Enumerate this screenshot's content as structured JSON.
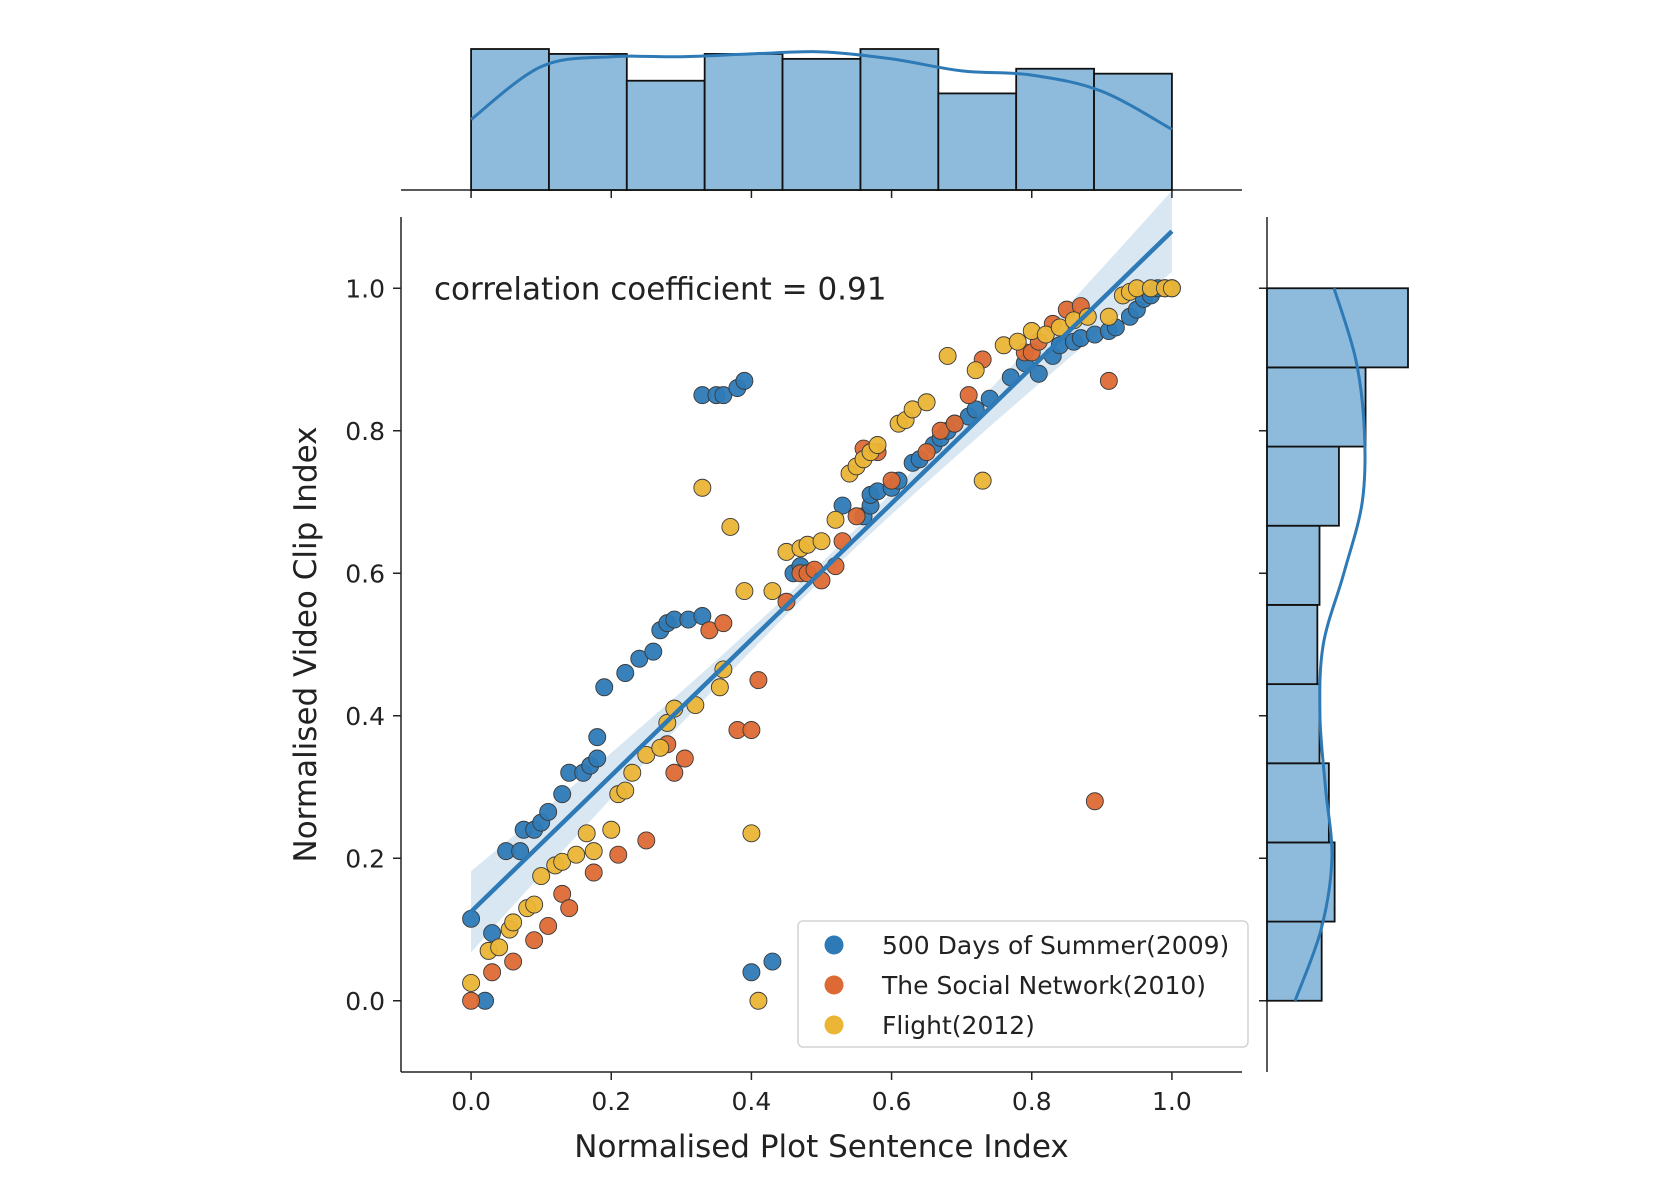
{
  "chart_data": {
    "type": "scatter",
    "xlabel": "Normalised Plot Sentence Index",
    "ylabel": "Normalised Video Clip Index",
    "xlim": [
      -0.1,
      1.1
    ],
    "ylim": [
      -0.1,
      1.1
    ],
    "x_ticks": [
      "0.0",
      "0.2",
      "0.4",
      "0.6",
      "0.8",
      "1.0"
    ],
    "y_ticks": [
      "0.0",
      "0.2",
      "0.4",
      "0.6",
      "0.8",
      "1.0"
    ],
    "annotation": "correlation coefficient = 0.91",
    "grid": false,
    "legend_position": "lower-right",
    "regression": {
      "intercept": 0.125,
      "slope": 0.955,
      "color": "#2e7ab6"
    },
    "series": [
      {
        "name": "500 Days of Summer(2009)",
        "color": "#2e7ab6",
        "points": [
          [
            0.0,
            0.115
          ],
          [
            0.02,
            0.0
          ],
          [
            0.03,
            0.095
          ],
          [
            0.05,
            0.21
          ],
          [
            0.07,
            0.21
          ],
          [
            0.075,
            0.24
          ],
          [
            0.09,
            0.24
          ],
          [
            0.1,
            0.25
          ],
          [
            0.11,
            0.265
          ],
          [
            0.13,
            0.29
          ],
          [
            0.14,
            0.32
          ],
          [
            0.16,
            0.32
          ],
          [
            0.17,
            0.33
          ],
          [
            0.18,
            0.34
          ],
          [
            0.18,
            0.37
          ],
          [
            0.19,
            0.44
          ],
          [
            0.22,
            0.46
          ],
          [
            0.24,
            0.48
          ],
          [
            0.26,
            0.49
          ],
          [
            0.27,
            0.52
          ],
          [
            0.28,
            0.53
          ],
          [
            0.29,
            0.535
          ],
          [
            0.31,
            0.535
          ],
          [
            0.33,
            0.54
          ],
          [
            0.33,
            0.85
          ],
          [
            0.35,
            0.85
          ],
          [
            0.36,
            0.85
          ],
          [
            0.38,
            0.86
          ],
          [
            0.39,
            0.87
          ],
          [
            0.4,
            0.04
          ],
          [
            0.43,
            0.055
          ],
          [
            0.46,
            0.6
          ],
          [
            0.47,
            0.61
          ],
          [
            0.53,
            0.695
          ],
          [
            0.56,
            0.68
          ],
          [
            0.57,
            0.695
          ],
          [
            0.57,
            0.71
          ],
          [
            0.58,
            0.715
          ],
          [
            0.6,
            0.72
          ],
          [
            0.61,
            0.73
          ],
          [
            0.63,
            0.755
          ],
          [
            0.64,
            0.76
          ],
          [
            0.66,
            0.78
          ],
          [
            0.67,
            0.79
          ],
          [
            0.68,
            0.8
          ],
          [
            0.69,
            0.81
          ],
          [
            0.71,
            0.82
          ],
          [
            0.72,
            0.83
          ],
          [
            0.74,
            0.845
          ],
          [
            0.77,
            0.875
          ],
          [
            0.79,
            0.895
          ],
          [
            0.81,
            0.88
          ],
          [
            0.83,
            0.905
          ],
          [
            0.84,
            0.92
          ],
          [
            0.86,
            0.925
          ],
          [
            0.87,
            0.93
          ],
          [
            0.89,
            0.935
          ],
          [
            0.91,
            0.94
          ],
          [
            0.92,
            0.945
          ],
          [
            0.94,
            0.96
          ],
          [
            0.95,
            0.97
          ],
          [
            0.96,
            0.985
          ],
          [
            0.97,
            0.99
          ],
          [
            0.98,
            1.0
          ],
          [
            0.99,
            1.0
          ],
          [
            1.0,
            1.0
          ]
        ]
      },
      {
        "name": "The Social Network(2010)",
        "color": "#dd6a34",
        "points": [
          [
            0.0,
            0.0
          ],
          [
            0.03,
            0.04
          ],
          [
            0.06,
            0.055
          ],
          [
            0.09,
            0.085
          ],
          [
            0.11,
            0.105
          ],
          [
            0.13,
            0.15
          ],
          [
            0.14,
            0.13
          ],
          [
            0.175,
            0.18
          ],
          [
            0.21,
            0.205
          ],
          [
            0.25,
            0.225
          ],
          [
            0.28,
            0.36
          ],
          [
            0.29,
            0.32
          ],
          [
            0.305,
            0.34
          ],
          [
            0.34,
            0.52
          ],
          [
            0.36,
            0.53
          ],
          [
            0.38,
            0.38
          ],
          [
            0.4,
            0.38
          ],
          [
            0.41,
            0.45
          ],
          [
            0.45,
            0.56
          ],
          [
            0.47,
            0.6
          ],
          [
            0.48,
            0.6
          ],
          [
            0.49,
            0.605
          ],
          [
            0.5,
            0.59
          ],
          [
            0.52,
            0.61
          ],
          [
            0.53,
            0.645
          ],
          [
            0.55,
            0.68
          ],
          [
            0.56,
            0.775
          ],
          [
            0.58,
            0.77
          ],
          [
            0.6,
            0.73
          ],
          [
            0.65,
            0.77
          ],
          [
            0.67,
            0.8
          ],
          [
            0.69,
            0.81
          ],
          [
            0.71,
            0.85
          ],
          [
            0.73,
            0.9
          ],
          [
            0.79,
            0.91
          ],
          [
            0.8,
            0.91
          ],
          [
            0.81,
            0.925
          ],
          [
            0.83,
            0.95
          ],
          [
            0.85,
            0.97
          ],
          [
            0.87,
            0.975
          ],
          [
            0.89,
            0.28
          ],
          [
            0.91,
            0.87
          ]
        ]
      },
      {
        "name": "Flight(2012)",
        "color": "#ebb536",
        "points": [
          [
            0.0,
            0.025
          ],
          [
            0.025,
            0.07
          ],
          [
            0.04,
            0.075
          ],
          [
            0.055,
            0.1
          ],
          [
            0.06,
            0.11
          ],
          [
            0.08,
            0.13
          ],
          [
            0.09,
            0.135
          ],
          [
            0.1,
            0.175
          ],
          [
            0.12,
            0.19
          ],
          [
            0.13,
            0.195
          ],
          [
            0.15,
            0.205
          ],
          [
            0.165,
            0.235
          ],
          [
            0.175,
            0.21
          ],
          [
            0.2,
            0.24
          ],
          [
            0.21,
            0.29
          ],
          [
            0.22,
            0.295
          ],
          [
            0.23,
            0.32
          ],
          [
            0.25,
            0.345
          ],
          [
            0.27,
            0.355
          ],
          [
            0.28,
            0.39
          ],
          [
            0.29,
            0.41
          ],
          [
            0.32,
            0.415
          ],
          [
            0.33,
            0.72
          ],
          [
            0.355,
            0.44
          ],
          [
            0.36,
            0.465
          ],
          [
            0.37,
            0.665
          ],
          [
            0.39,
            0.575
          ],
          [
            0.4,
            0.235
          ],
          [
            0.41,
            0.0
          ],
          [
            0.43,
            0.575
          ],
          [
            0.45,
            0.63
          ],
          [
            0.47,
            0.635
          ],
          [
            0.48,
            0.64
          ],
          [
            0.5,
            0.645
          ],
          [
            0.52,
            0.675
          ],
          [
            0.54,
            0.74
          ],
          [
            0.55,
            0.75
          ],
          [
            0.56,
            0.76
          ],
          [
            0.57,
            0.77
          ],
          [
            0.58,
            0.78
          ],
          [
            0.61,
            0.81
          ],
          [
            0.62,
            0.815
          ],
          [
            0.63,
            0.83
          ],
          [
            0.65,
            0.84
          ],
          [
            0.68,
            0.905
          ],
          [
            0.72,
            0.885
          ],
          [
            0.73,
            0.73
          ],
          [
            0.76,
            0.92
          ],
          [
            0.78,
            0.925
          ],
          [
            0.8,
            0.94
          ],
          [
            0.82,
            0.935
          ],
          [
            0.84,
            0.945
          ],
          [
            0.86,
            0.955
          ],
          [
            0.88,
            0.96
          ],
          [
            0.91,
            0.96
          ],
          [
            0.93,
            0.99
          ],
          [
            0.94,
            0.995
          ],
          [
            0.95,
            1.0
          ],
          [
            0.97,
            1.0
          ],
          [
            0.99,
            1.0
          ],
          [
            1.0,
            1.0
          ]
        ]
      }
    ],
    "x_histogram": {
      "bin_edges": [
        0.0,
        0.1111,
        0.2222,
        0.3333,
        0.4444,
        0.5556,
        0.6667,
        0.7778,
        0.8889,
        1.0
      ],
      "counts": [
        20,
        19.3,
        15.5,
        19.3,
        18.6,
        20,
        13.7,
        17.2,
        16.5
      ],
      "kde": [
        [
          0.0,
          10.0
        ],
        [
          0.1,
          17.5
        ],
        [
          0.2,
          18.9
        ],
        [
          0.3,
          18.9
        ],
        [
          0.4,
          19.3
        ],
        [
          0.5,
          19.6
        ],
        [
          0.6,
          18.6
        ],
        [
          0.7,
          16.9
        ],
        [
          0.8,
          16.3
        ],
        [
          0.9,
          14.0
        ],
        [
          1.0,
          8.6
        ]
      ],
      "color": "#8ebbdb",
      "kde_color": "#2e7ab6"
    },
    "y_histogram": {
      "bin_edges": [
        0.0,
        0.1111,
        0.2222,
        0.3333,
        0.4444,
        0.5556,
        0.6667,
        0.7778,
        0.8889,
        1.0
      ],
      "counts": [
        38,
        47,
        43,
        36.5,
        35,
        36.5,
        50,
        68.5,
        98
      ],
      "kde": [
        [
          0.0,
          19.5
        ],
        [
          0.1,
          37.6
        ],
        [
          0.2,
          45.1
        ],
        [
          0.3,
          40.6
        ],
        [
          0.4,
          36.8
        ],
        [
          0.5,
          39.1
        ],
        [
          0.6,
          53.4
        ],
        [
          0.7,
          66.2
        ],
        [
          0.8,
          67.7
        ],
        [
          0.9,
          61.7
        ],
        [
          1.0,
          46.6
        ]
      ],
      "color": "#8ebbdb",
      "kde_color": "#2e7ab6"
    }
  }
}
